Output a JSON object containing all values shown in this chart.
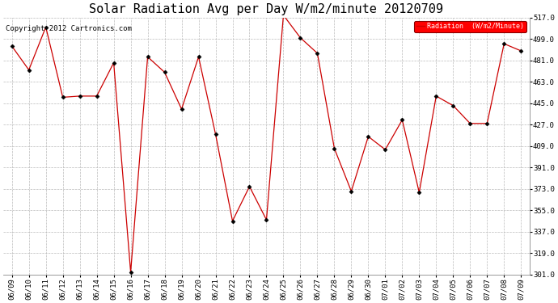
{
  "title": "Solar Radiation Avg per Day W/m2/minute 20120709",
  "copyright": "Copyright 2012 Cartronics.com",
  "legend_label": "Radiation  (W/m2/Minute)",
  "dates": [
    "06/09",
    "06/10",
    "06/11",
    "06/12",
    "06/13",
    "06/14",
    "06/15",
    "06/16",
    "06/17",
    "06/18",
    "06/19",
    "06/20",
    "06/21",
    "06/22",
    "06/23",
    "06/24",
    "06/25",
    "06/26",
    "06/27",
    "06/28",
    "06/29",
    "06/30",
    "07/01",
    "07/02",
    "07/03",
    "07/04",
    "07/05",
    "07/06",
    "07/07",
    "07/08",
    "07/09"
  ],
  "values": [
    493,
    473,
    509,
    450,
    451,
    451,
    479,
    303,
    484,
    471,
    440,
    484,
    419,
    346,
    375,
    347,
    519,
    500,
    487,
    407,
    371,
    417,
    406,
    431,
    370,
    451,
    443,
    428,
    428,
    495,
    489
  ],
  "ylim_min": 301.0,
  "ylim_max": 517.0,
  "yticks": [
    301.0,
    319.0,
    337.0,
    355.0,
    373.0,
    391.0,
    409.0,
    427.0,
    445.0,
    463.0,
    481.0,
    499.0,
    517.0
  ],
  "line_color": "#cc0000",
  "marker_color": "#000000",
  "bg_color": "#ffffff",
  "grid_color": "#bbbbbb",
  "title_fontsize": 11,
  "tick_fontsize": 6.5,
  "copyright_fontsize": 6.5
}
